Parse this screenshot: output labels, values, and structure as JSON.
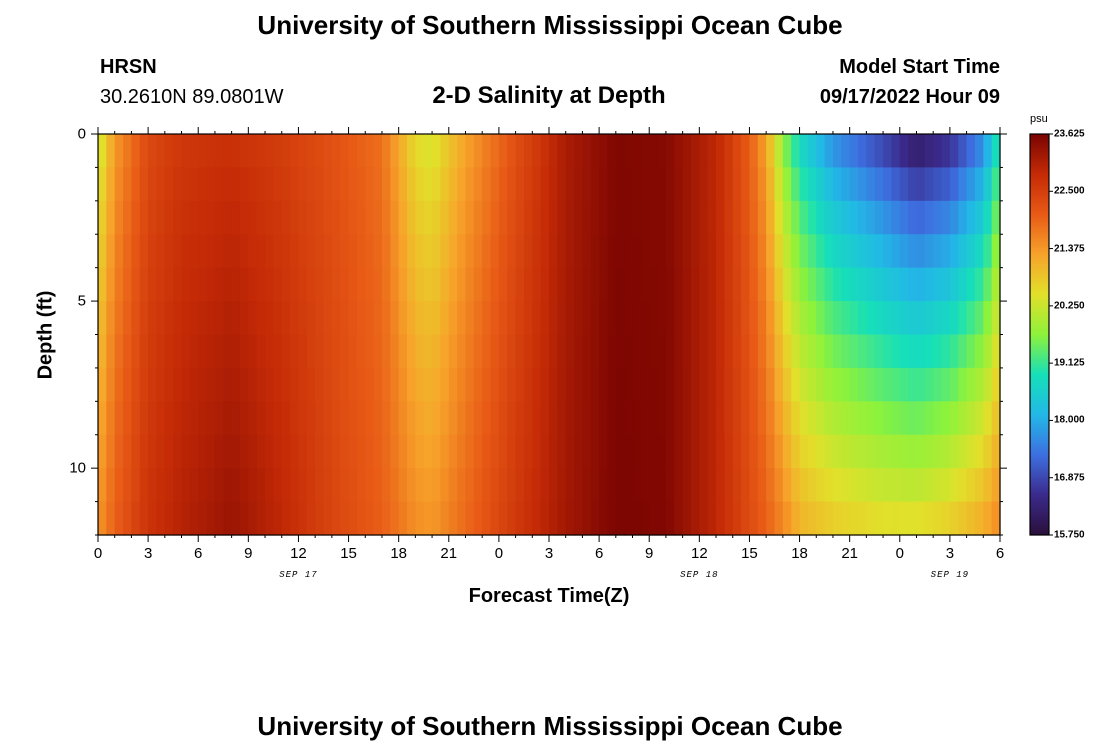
{
  "header": {
    "title": "University of Southern Mississippi Ocean Cube",
    "station": "HRSN",
    "coords": "30.2610N  89.0801W",
    "plot_title": "2-D Salinity at Depth",
    "model_start_label": "Model Start Time",
    "model_start_value": "09/17/2022 Hour 09"
  },
  "footer": {
    "title": "University of Southern Mississippi Ocean Cube"
  },
  "colors": {
    "ramp": [
      "#2a0f3a",
      "#3b2a8c",
      "#3d6fe0",
      "#22b8e6",
      "#16e0b8",
      "#8ef23a",
      "#e2e02a",
      "#f7a22a",
      "#e85a16",
      "#c42a06",
      "#7a0402"
    ]
  },
  "chart_data": {
    "type": "heatmap",
    "title": "2-D Salinity at Depth",
    "xlabel": "Forecast Time(Z)",
    "ylabel": "Depth (ft)",
    "xlim": [
      0,
      54
    ],
    "ylim": [
      12,
      0
    ],
    "x_ticks": [
      {
        "label": "0",
        "value": 0
      },
      {
        "label": "3",
        "value": 3
      },
      {
        "label": "6",
        "value": 6
      },
      {
        "label": "9",
        "value": 9
      },
      {
        "label": "12",
        "value": 12
      },
      {
        "label": "15",
        "value": 15
      },
      {
        "label": "18",
        "value": 18
      },
      {
        "label": "21",
        "value": 21
      },
      {
        "label": "0",
        "value": 24
      },
      {
        "label": "3",
        "value": 27
      },
      {
        "label": "6",
        "value": 30
      },
      {
        "label": "9",
        "value": 33
      },
      {
        "label": "12",
        "value": 36
      },
      {
        "label": "15",
        "value": 39
      },
      {
        "label": "18",
        "value": 42
      },
      {
        "label": "21",
        "value": 45
      },
      {
        "label": "0",
        "value": 48
      },
      {
        "label": "3",
        "value": 51
      },
      {
        "label": "6",
        "value": 54
      }
    ],
    "date_labels": [
      {
        "label": "SEP 17",
        "value": 12
      },
      {
        "label": "SEP 18",
        "value": 36
      },
      {
        "label": "SEP 19",
        "value": 51
      }
    ],
    "y_ticks": [
      {
        "label": "0",
        "value": 0
      },
      {
        "label": "5",
        "value": 5
      },
      {
        "label": "10",
        "value": 10
      }
    ],
    "colorbar": {
      "unit": "psu",
      "min": 15.75,
      "max": 23.625,
      "labels": [
        "23.625",
        "22.500",
        "21.375",
        "20.250",
        "19.125",
        "18.000",
        "16.875",
        "15.750"
      ]
    },
    "depths": [
      0,
      1,
      2,
      3,
      4,
      5,
      6,
      7,
      8,
      9,
      10,
      11,
      12
    ],
    "keyframes": [
      {
        "time": 0,
        "surface": 20.1,
        "bottom": 21.4
      },
      {
        "time": 1,
        "surface": 21.3,
        "bottom": 22.0
      },
      {
        "time": 3,
        "surface": 22.3,
        "bottom": 22.7
      },
      {
        "time": 5,
        "surface": 22.6,
        "bottom": 23.0
      },
      {
        "time": 8,
        "surface": 22.7,
        "bottom": 23.3
      },
      {
        "time": 11,
        "surface": 22.5,
        "bottom": 22.9
      },
      {
        "time": 14,
        "surface": 22.2,
        "bottom": 22.4
      },
      {
        "time": 17,
        "surface": 21.8,
        "bottom": 22.0
      },
      {
        "time": 19,
        "surface": 20.5,
        "bottom": 21.5
      },
      {
        "time": 20,
        "surface": 20.3,
        "bottom": 21.4
      },
      {
        "time": 22,
        "surface": 21.2,
        "bottom": 21.9
      },
      {
        "time": 25,
        "surface": 22.2,
        "bottom": 22.6
      },
      {
        "time": 28,
        "surface": 23.1,
        "bottom": 23.2
      },
      {
        "time": 31,
        "surface": 23.55,
        "bottom": 23.6
      },
      {
        "time": 34,
        "surface": 23.5,
        "bottom": 23.55
      },
      {
        "time": 37,
        "surface": 22.9,
        "bottom": 22.9
      },
      {
        "time": 39,
        "surface": 22.0,
        "bottom": 22.3
      },
      {
        "time": 40,
        "surface": 21.2,
        "bottom": 22.0
      },
      {
        "time": 41,
        "surface": 19.6,
        "bottom": 21.6
      },
      {
        "time": 42,
        "surface": 18.6,
        "bottom": 21.1
      },
      {
        "time": 44,
        "surface": 17.5,
        "bottom": 20.8
      },
      {
        "time": 47,
        "surface": 16.6,
        "bottom": 20.6
      },
      {
        "time": 49,
        "surface": 15.9,
        "bottom": 20.6
      },
      {
        "time": 51,
        "surface": 16.3,
        "bottom": 20.8
      },
      {
        "time": 53,
        "surface": 17.4,
        "bottom": 21.2
      },
      {
        "time": 54,
        "surface": 19.0,
        "bottom": 21.6
      }
    ]
  }
}
